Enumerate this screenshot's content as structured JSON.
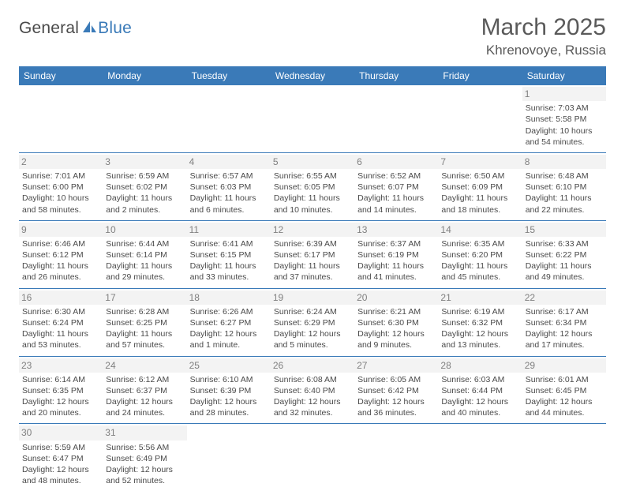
{
  "logo": {
    "text1": "General",
    "text2": "Blue"
  },
  "title": "March 2025",
  "location": "Khrenovoye, Russia",
  "colors": {
    "header_bg": "#3a7ab8",
    "header_text": "#ffffff",
    "border": "#3a7ab8",
    "daynum_bg": "#f3f3f3",
    "daynum_text": "#808080",
    "body_text": "#4a4a4a"
  },
  "typography": {
    "title_fontsize": 30,
    "location_fontsize": 17,
    "dayheader_fontsize": 12,
    "cell_fontsize": 10.5
  },
  "day_headers": [
    "Sunday",
    "Monday",
    "Tuesday",
    "Wednesday",
    "Thursday",
    "Friday",
    "Saturday"
  ],
  "weeks": [
    [
      {
        "day": null
      },
      {
        "day": null
      },
      {
        "day": null
      },
      {
        "day": null
      },
      {
        "day": null
      },
      {
        "day": null
      },
      {
        "day": "1",
        "sunrise": "Sunrise: 7:03 AM",
        "sunset": "Sunset: 5:58 PM",
        "daylight1": "Daylight: 10 hours",
        "daylight2": "and 54 minutes."
      }
    ],
    [
      {
        "day": "2",
        "sunrise": "Sunrise: 7:01 AM",
        "sunset": "Sunset: 6:00 PM",
        "daylight1": "Daylight: 10 hours",
        "daylight2": "and 58 minutes."
      },
      {
        "day": "3",
        "sunrise": "Sunrise: 6:59 AM",
        "sunset": "Sunset: 6:02 PM",
        "daylight1": "Daylight: 11 hours",
        "daylight2": "and 2 minutes."
      },
      {
        "day": "4",
        "sunrise": "Sunrise: 6:57 AM",
        "sunset": "Sunset: 6:03 PM",
        "daylight1": "Daylight: 11 hours",
        "daylight2": "and 6 minutes."
      },
      {
        "day": "5",
        "sunrise": "Sunrise: 6:55 AM",
        "sunset": "Sunset: 6:05 PM",
        "daylight1": "Daylight: 11 hours",
        "daylight2": "and 10 minutes."
      },
      {
        "day": "6",
        "sunrise": "Sunrise: 6:52 AM",
        "sunset": "Sunset: 6:07 PM",
        "daylight1": "Daylight: 11 hours",
        "daylight2": "and 14 minutes."
      },
      {
        "day": "7",
        "sunrise": "Sunrise: 6:50 AM",
        "sunset": "Sunset: 6:09 PM",
        "daylight1": "Daylight: 11 hours",
        "daylight2": "and 18 minutes."
      },
      {
        "day": "8",
        "sunrise": "Sunrise: 6:48 AM",
        "sunset": "Sunset: 6:10 PM",
        "daylight1": "Daylight: 11 hours",
        "daylight2": "and 22 minutes."
      }
    ],
    [
      {
        "day": "9",
        "sunrise": "Sunrise: 6:46 AM",
        "sunset": "Sunset: 6:12 PM",
        "daylight1": "Daylight: 11 hours",
        "daylight2": "and 26 minutes."
      },
      {
        "day": "10",
        "sunrise": "Sunrise: 6:44 AM",
        "sunset": "Sunset: 6:14 PM",
        "daylight1": "Daylight: 11 hours",
        "daylight2": "and 29 minutes."
      },
      {
        "day": "11",
        "sunrise": "Sunrise: 6:41 AM",
        "sunset": "Sunset: 6:15 PM",
        "daylight1": "Daylight: 11 hours",
        "daylight2": "and 33 minutes."
      },
      {
        "day": "12",
        "sunrise": "Sunrise: 6:39 AM",
        "sunset": "Sunset: 6:17 PM",
        "daylight1": "Daylight: 11 hours",
        "daylight2": "and 37 minutes."
      },
      {
        "day": "13",
        "sunrise": "Sunrise: 6:37 AM",
        "sunset": "Sunset: 6:19 PM",
        "daylight1": "Daylight: 11 hours",
        "daylight2": "and 41 minutes."
      },
      {
        "day": "14",
        "sunrise": "Sunrise: 6:35 AM",
        "sunset": "Sunset: 6:20 PM",
        "daylight1": "Daylight: 11 hours",
        "daylight2": "and 45 minutes."
      },
      {
        "day": "15",
        "sunrise": "Sunrise: 6:33 AM",
        "sunset": "Sunset: 6:22 PM",
        "daylight1": "Daylight: 11 hours",
        "daylight2": "and 49 minutes."
      }
    ],
    [
      {
        "day": "16",
        "sunrise": "Sunrise: 6:30 AM",
        "sunset": "Sunset: 6:24 PM",
        "daylight1": "Daylight: 11 hours",
        "daylight2": "and 53 minutes."
      },
      {
        "day": "17",
        "sunrise": "Sunrise: 6:28 AM",
        "sunset": "Sunset: 6:25 PM",
        "daylight1": "Daylight: 11 hours",
        "daylight2": "and 57 minutes."
      },
      {
        "day": "18",
        "sunrise": "Sunrise: 6:26 AM",
        "sunset": "Sunset: 6:27 PM",
        "daylight1": "Daylight: 12 hours",
        "daylight2": "and 1 minute."
      },
      {
        "day": "19",
        "sunrise": "Sunrise: 6:24 AM",
        "sunset": "Sunset: 6:29 PM",
        "daylight1": "Daylight: 12 hours",
        "daylight2": "and 5 minutes."
      },
      {
        "day": "20",
        "sunrise": "Sunrise: 6:21 AM",
        "sunset": "Sunset: 6:30 PM",
        "daylight1": "Daylight: 12 hours",
        "daylight2": "and 9 minutes."
      },
      {
        "day": "21",
        "sunrise": "Sunrise: 6:19 AM",
        "sunset": "Sunset: 6:32 PM",
        "daylight1": "Daylight: 12 hours",
        "daylight2": "and 13 minutes."
      },
      {
        "day": "22",
        "sunrise": "Sunrise: 6:17 AM",
        "sunset": "Sunset: 6:34 PM",
        "daylight1": "Daylight: 12 hours",
        "daylight2": "and 17 minutes."
      }
    ],
    [
      {
        "day": "23",
        "sunrise": "Sunrise: 6:14 AM",
        "sunset": "Sunset: 6:35 PM",
        "daylight1": "Daylight: 12 hours",
        "daylight2": "and 20 minutes."
      },
      {
        "day": "24",
        "sunrise": "Sunrise: 6:12 AM",
        "sunset": "Sunset: 6:37 PM",
        "daylight1": "Daylight: 12 hours",
        "daylight2": "and 24 minutes."
      },
      {
        "day": "25",
        "sunrise": "Sunrise: 6:10 AM",
        "sunset": "Sunset: 6:39 PM",
        "daylight1": "Daylight: 12 hours",
        "daylight2": "and 28 minutes."
      },
      {
        "day": "26",
        "sunrise": "Sunrise: 6:08 AM",
        "sunset": "Sunset: 6:40 PM",
        "daylight1": "Daylight: 12 hours",
        "daylight2": "and 32 minutes."
      },
      {
        "day": "27",
        "sunrise": "Sunrise: 6:05 AM",
        "sunset": "Sunset: 6:42 PM",
        "daylight1": "Daylight: 12 hours",
        "daylight2": "and 36 minutes."
      },
      {
        "day": "28",
        "sunrise": "Sunrise: 6:03 AM",
        "sunset": "Sunset: 6:44 PM",
        "daylight1": "Daylight: 12 hours",
        "daylight2": "and 40 minutes."
      },
      {
        "day": "29",
        "sunrise": "Sunrise: 6:01 AM",
        "sunset": "Sunset: 6:45 PM",
        "daylight1": "Daylight: 12 hours",
        "daylight2": "and 44 minutes."
      }
    ],
    [
      {
        "day": "30",
        "sunrise": "Sunrise: 5:59 AM",
        "sunset": "Sunset: 6:47 PM",
        "daylight1": "Daylight: 12 hours",
        "daylight2": "and 48 minutes."
      },
      {
        "day": "31",
        "sunrise": "Sunrise: 5:56 AM",
        "sunset": "Sunset: 6:49 PM",
        "daylight1": "Daylight: 12 hours",
        "daylight2": "and 52 minutes."
      },
      {
        "day": null
      },
      {
        "day": null
      },
      {
        "day": null
      },
      {
        "day": null
      },
      {
        "day": null
      }
    ]
  ]
}
